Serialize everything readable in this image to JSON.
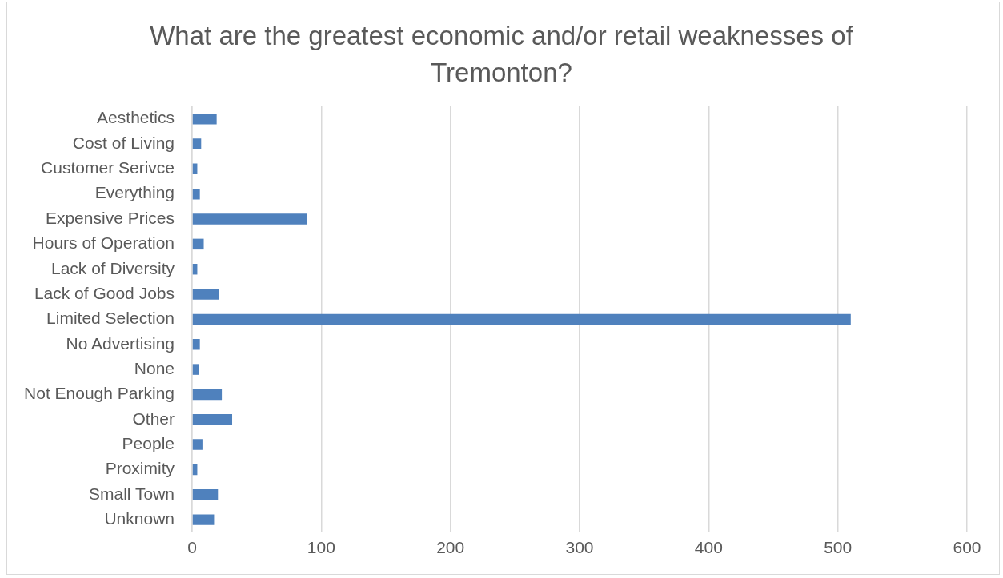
{
  "chart_data": {
    "type": "bar",
    "orientation": "horizontal",
    "title": "What are the greatest economic and/or retail weaknesses of Tremonton?",
    "categories": [
      "Aesthetics",
      "Cost of Living",
      "Customer Serivce",
      "Everything",
      "Expensive Prices",
      "Hours of Operation",
      "Lack of Diversity",
      "Lack of Good Jobs",
      "Limited Selection",
      "No Advertising",
      "None",
      "Not Enough Parking",
      "Other",
      "People",
      "Proximity",
      "Small Town",
      "Unknown"
    ],
    "values": [
      19,
      7,
      4,
      6,
      89,
      9,
      4,
      21,
      510,
      6,
      5,
      23,
      31,
      8,
      4,
      20,
      17
    ],
    "color": "#4f81bd",
    "xlim": [
      0,
      600
    ],
    "xticks": [
      0,
      100,
      200,
      300,
      400,
      500,
      600
    ],
    "grid": "x"
  }
}
